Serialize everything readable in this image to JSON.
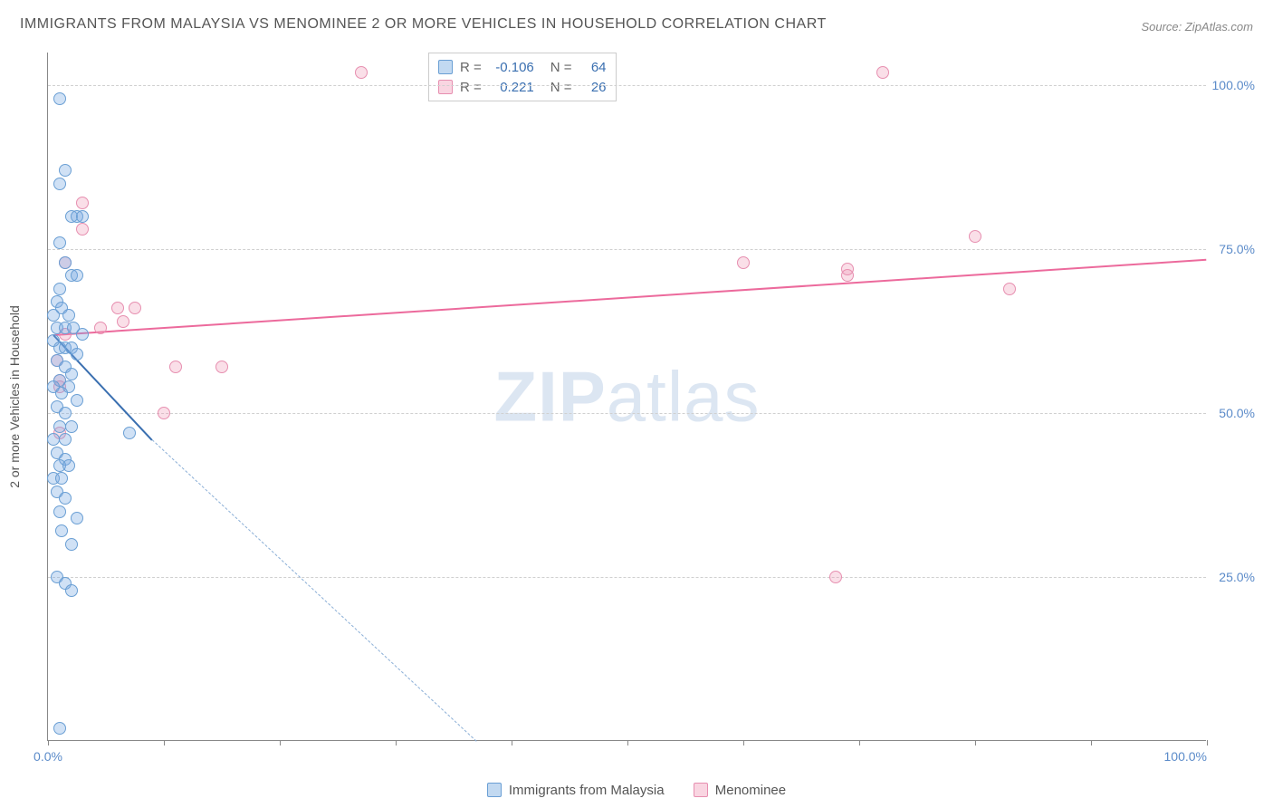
{
  "title": "IMMIGRANTS FROM MALAYSIA VS MENOMINEE 2 OR MORE VEHICLES IN HOUSEHOLD CORRELATION CHART",
  "source_prefix": "Source: ",
  "source": "ZipAtlas.com",
  "watermark_bold": "ZIP",
  "watermark_thin": "atlas",
  "chart": {
    "type": "scatter",
    "xlim": [
      0,
      100
    ],
    "ylim": [
      0,
      105
    ],
    "ylabel": "2 or more Vehicles in Household",
    "background_color": "#ffffff",
    "grid_color": "#d0d0d0",
    "axis_color": "#888888",
    "tick_label_color": "#5b8bc9",
    "y_gridlines": [
      25,
      50,
      75,
      100
    ],
    "y_tick_labels": [
      "25.0%",
      "50.0%",
      "75.0%",
      "100.0%"
    ],
    "x_ticks": [
      0,
      10,
      20,
      30,
      40,
      50,
      60,
      70,
      80,
      90,
      100
    ],
    "x_tick_labels": {
      "0": "0.0%",
      "100": "100.0%"
    },
    "series": [
      {
        "name": "Immigrants from Malaysia",
        "color_fill": "rgba(120,170,225,0.35)",
        "color_stroke": "#6a9fd4",
        "r": -0.106,
        "n": 64,
        "trend": {
          "x1": 0.5,
          "y1": 62,
          "x2": 9,
          "y2": 46,
          "color": "#3a6fb0"
        },
        "trend_extrapolated": {
          "x1": 9,
          "y1": 46,
          "x2": 37,
          "y2": 0,
          "color": "#8aaed6"
        },
        "points": [
          [
            1,
            98
          ],
          [
            1.5,
            87
          ],
          [
            1,
            85
          ],
          [
            2,
            80
          ],
          [
            2.5,
            80
          ],
          [
            3,
            80
          ],
          [
            1,
            76
          ],
          [
            1.5,
            73
          ],
          [
            2,
            71
          ],
          [
            2.5,
            71
          ],
          [
            1,
            69
          ],
          [
            0.8,
            67
          ],
          [
            1.2,
            66
          ],
          [
            0.5,
            65
          ],
          [
            1.8,
            65
          ],
          [
            0.8,
            63
          ],
          [
            1.5,
            63
          ],
          [
            2.2,
            63
          ],
          [
            3,
            62
          ],
          [
            0.5,
            61
          ],
          [
            1,
            60
          ],
          [
            1.5,
            60
          ],
          [
            2,
            60
          ],
          [
            2.5,
            59
          ],
          [
            0.8,
            58
          ],
          [
            1.5,
            57
          ],
          [
            2,
            56
          ],
          [
            1,
            55
          ],
          [
            0.5,
            54
          ],
          [
            1.8,
            54
          ],
          [
            1.2,
            53
          ],
          [
            2.5,
            52
          ],
          [
            0.8,
            51
          ],
          [
            1.5,
            50
          ],
          [
            1,
            48
          ],
          [
            2,
            48
          ],
          [
            7,
            47
          ],
          [
            0.5,
            46
          ],
          [
            1.5,
            46
          ],
          [
            0.8,
            44
          ],
          [
            1.5,
            43
          ],
          [
            1,
            42
          ],
          [
            1.8,
            42
          ],
          [
            0.5,
            40
          ],
          [
            1.2,
            40
          ],
          [
            0.8,
            38
          ],
          [
            1.5,
            37
          ],
          [
            1,
            35
          ],
          [
            2.5,
            34
          ],
          [
            1.2,
            32
          ],
          [
            2,
            30
          ],
          [
            0.8,
            25
          ],
          [
            1.5,
            24
          ],
          [
            2,
            23
          ],
          [
            1,
            2
          ]
        ]
      },
      {
        "name": "Menominee",
        "color_fill": "rgba(240,150,180,0.30)",
        "color_stroke": "#e78fb0",
        "r": 0.221,
        "n": 26,
        "trend": {
          "x1": 0.5,
          "y1": 62,
          "x2": 100,
          "y2": 73.5,
          "color": "#ec6a9c"
        },
        "points": [
          [
            27,
            102
          ],
          [
            72,
            102
          ],
          [
            3,
            82
          ],
          [
            3,
            78
          ],
          [
            80,
            77
          ],
          [
            1.5,
            73
          ],
          [
            60,
            73
          ],
          [
            69,
            71
          ],
          [
            69,
            72
          ],
          [
            83,
            69
          ],
          [
            6,
            66
          ],
          [
            7.5,
            66
          ],
          [
            6.5,
            64
          ],
          [
            1.5,
            62
          ],
          [
            4.5,
            63
          ],
          [
            0.8,
            58
          ],
          [
            11,
            57
          ],
          [
            15,
            57
          ],
          [
            1,
            55
          ],
          [
            1,
            54
          ],
          [
            10,
            50
          ],
          [
            1,
            47
          ],
          [
            68,
            25
          ]
        ]
      }
    ],
    "legend_bottom": [
      {
        "label": "Immigrants from Malaysia",
        "swatch": "blue"
      },
      {
        "label": "Menominee",
        "swatch": "pink"
      }
    ],
    "legend_top_labels": {
      "r": "R =",
      "n": "N ="
    }
  }
}
